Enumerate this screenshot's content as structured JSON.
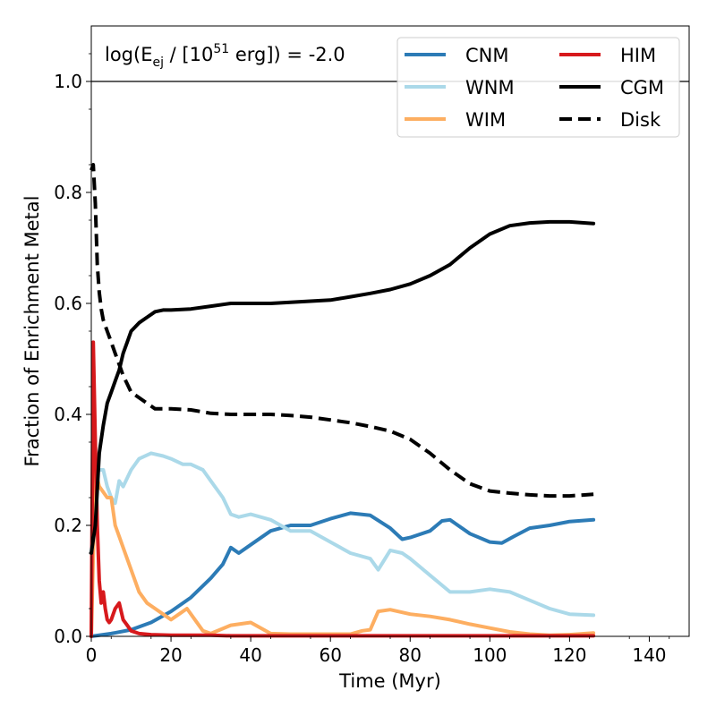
{
  "chart_data": {
    "type": "line",
    "annotation": {
      "prefix": "log(E",
      "sub": "ej",
      "mid": " / [10",
      "sup": "51",
      "suffix": " erg]) = -2.0"
    },
    "xlabel": "Time (Myr)",
    "ylabel": "Fraction of Enrichment Metal",
    "xlim": [
      0,
      150
    ],
    "ylim": [
      0,
      1.1
    ],
    "xticks": [
      0,
      20,
      40,
      60,
      80,
      100,
      120,
      140
    ],
    "yticks": [
      0.0,
      0.2,
      0.4,
      0.6,
      0.8,
      1.0
    ],
    "xtick_labels": [
      "0",
      "20",
      "40",
      "60",
      "80",
      "100",
      "120",
      "140"
    ],
    "ytick_labels": [
      "0.0",
      "0.2",
      "0.4",
      "0.6",
      "0.8",
      "1.0"
    ],
    "reference_line_y": 1.0,
    "grid": false,
    "legend_position": "top-right",
    "series": [
      {
        "name": "CNM",
        "color": "#2c7bb6",
        "dash": "solid",
        "x": [
          0,
          5,
          10,
          15,
          20,
          25,
          30,
          33,
          35,
          37,
          40,
          45,
          50,
          55,
          60,
          65,
          70,
          75,
          78,
          80,
          85,
          88,
          90,
          95,
          100,
          103,
          106,
          110,
          115,
          120,
          126
        ],
        "y": [
          0.0,
          0.005,
          0.012,
          0.025,
          0.045,
          0.07,
          0.105,
          0.13,
          0.16,
          0.15,
          0.165,
          0.19,
          0.2,
          0.2,
          0.212,
          0.222,
          0.218,
          0.195,
          0.175,
          0.178,
          0.19,
          0.208,
          0.21,
          0.185,
          0.17,
          0.168,
          0.18,
          0.195,
          0.2,
          0.207,
          0.21
        ]
      },
      {
        "name": "WNM",
        "color": "#abd9e9",
        "dash": "solid",
        "x": [
          0,
          1,
          2,
          3,
          4,
          5,
          6,
          7,
          8,
          10,
          12,
          15,
          18,
          20,
          23,
          25,
          28,
          30,
          33,
          35,
          37,
          40,
          45,
          50,
          55,
          60,
          65,
          70,
          72,
          75,
          78,
          80,
          85,
          90,
          95,
          100,
          105,
          110,
          115,
          120,
          126
        ],
        "y": [
          0.15,
          0.29,
          0.3,
          0.3,
          0.27,
          0.25,
          0.24,
          0.28,
          0.27,
          0.3,
          0.32,
          0.33,
          0.325,
          0.32,
          0.31,
          0.31,
          0.3,
          0.28,
          0.25,
          0.22,
          0.215,
          0.22,
          0.21,
          0.19,
          0.19,
          0.17,
          0.15,
          0.14,
          0.12,
          0.155,
          0.15,
          0.14,
          0.11,
          0.08,
          0.08,
          0.085,
          0.08,
          0.065,
          0.05,
          0.04,
          0.038
        ]
      },
      {
        "name": "WIM",
        "color": "#fdae61",
        "dash": "solid",
        "x": [
          0,
          1,
          2,
          3,
          4,
          5,
          6,
          7,
          8,
          10,
          12,
          14,
          16,
          18,
          20,
          22,
          24,
          26,
          28,
          30,
          35,
          40,
          45,
          50,
          55,
          60,
          65,
          68,
          70,
          72,
          75,
          80,
          85,
          90,
          95,
          100,
          105,
          110,
          115,
          120,
          126
        ],
        "y": [
          0.0,
          0.3,
          0.27,
          0.26,
          0.25,
          0.25,
          0.2,
          0.18,
          0.16,
          0.12,
          0.08,
          0.06,
          0.05,
          0.04,
          0.03,
          0.04,
          0.05,
          0.03,
          0.01,
          0.005,
          0.02,
          0.025,
          0.005,
          0.004,
          0.004,
          0.004,
          0.004,
          0.01,
          0.012,
          0.045,
          0.048,
          0.04,
          0.036,
          0.03,
          0.022,
          0.015,
          0.008,
          0.004,
          0.002,
          0.003,
          0.006
        ]
      },
      {
        "name": "HIM",
        "color": "#d7191c",
        "dash": "solid",
        "x": [
          0,
          0.5,
          1,
          1.5,
          2,
          2.5,
          3,
          3.5,
          4,
          4.5,
          5,
          5.5,
          6,
          7,
          8,
          9,
          10,
          12,
          15,
          20,
          25,
          30,
          35,
          40,
          45,
          50,
          55,
          60,
          65,
          70,
          75,
          80,
          85,
          90,
          95,
          100,
          105,
          110,
          115,
          120,
          126
        ],
        "y": [
          0.0,
          0.53,
          0.35,
          0.2,
          0.1,
          0.06,
          0.08,
          0.05,
          0.03,
          0.025,
          0.03,
          0.04,
          0.05,
          0.06,
          0.03,
          0.02,
          0.01,
          0.005,
          0.003,
          0.002,
          0.002,
          0.002,
          0.001,
          0.001,
          0.001,
          0.001,
          0.001,
          0.001,
          0.001,
          0.001,
          0.001,
          0.001,
          0.001,
          0.001,
          0.001,
          0.001,
          0.001,
          0.001,
          0.001,
          0.001,
          0.001
        ]
      },
      {
        "name": "CGM",
        "color": "#000000",
        "dash": "solid",
        "x": [
          0,
          1,
          2,
          3,
          4,
          5,
          6,
          7,
          8,
          9,
          10,
          12,
          14,
          16,
          18,
          20,
          25,
          30,
          35,
          40,
          45,
          50,
          55,
          60,
          65,
          70,
          75,
          80,
          85,
          90,
          95,
          100,
          105,
          110,
          115,
          120,
          126
        ],
        "y": [
          0.15,
          0.2,
          0.33,
          0.38,
          0.42,
          0.44,
          0.46,
          0.48,
          0.51,
          0.53,
          0.55,
          0.565,
          0.575,
          0.585,
          0.588,
          0.588,
          0.59,
          0.595,
          0.6,
          0.6,
          0.6,
          0.602,
          0.604,
          0.606,
          0.612,
          0.618,
          0.625,
          0.635,
          0.65,
          0.67,
          0.7,
          0.725,
          0.74,
          0.745,
          0.747,
          0.747,
          0.744
        ]
      },
      {
        "name": "Disk",
        "color": "#000000",
        "dash": "dashed",
        "x": [
          0,
          0.5,
          1,
          1.5,
          2,
          2.5,
          3,
          4,
          5,
          6,
          7,
          8,
          9,
          10,
          12,
          14,
          16,
          18,
          20,
          25,
          30,
          35,
          40,
          45,
          50,
          55,
          60,
          65,
          70,
          75,
          80,
          85,
          90,
          95,
          100,
          105,
          110,
          115,
          120,
          126
        ],
        "y": [
          0.84,
          0.85,
          0.78,
          0.67,
          0.62,
          0.59,
          0.57,
          0.55,
          0.53,
          0.51,
          0.49,
          0.47,
          0.455,
          0.44,
          0.43,
          0.42,
          0.41,
          0.41,
          0.41,
          0.408,
          0.402,
          0.4,
          0.4,
          0.4,
          0.398,
          0.395,
          0.39,
          0.385,
          0.378,
          0.37,
          0.355,
          0.33,
          0.3,
          0.275,
          0.262,
          0.258,
          0.255,
          0.253,
          0.253,
          0.256
        ]
      }
    ]
  }
}
